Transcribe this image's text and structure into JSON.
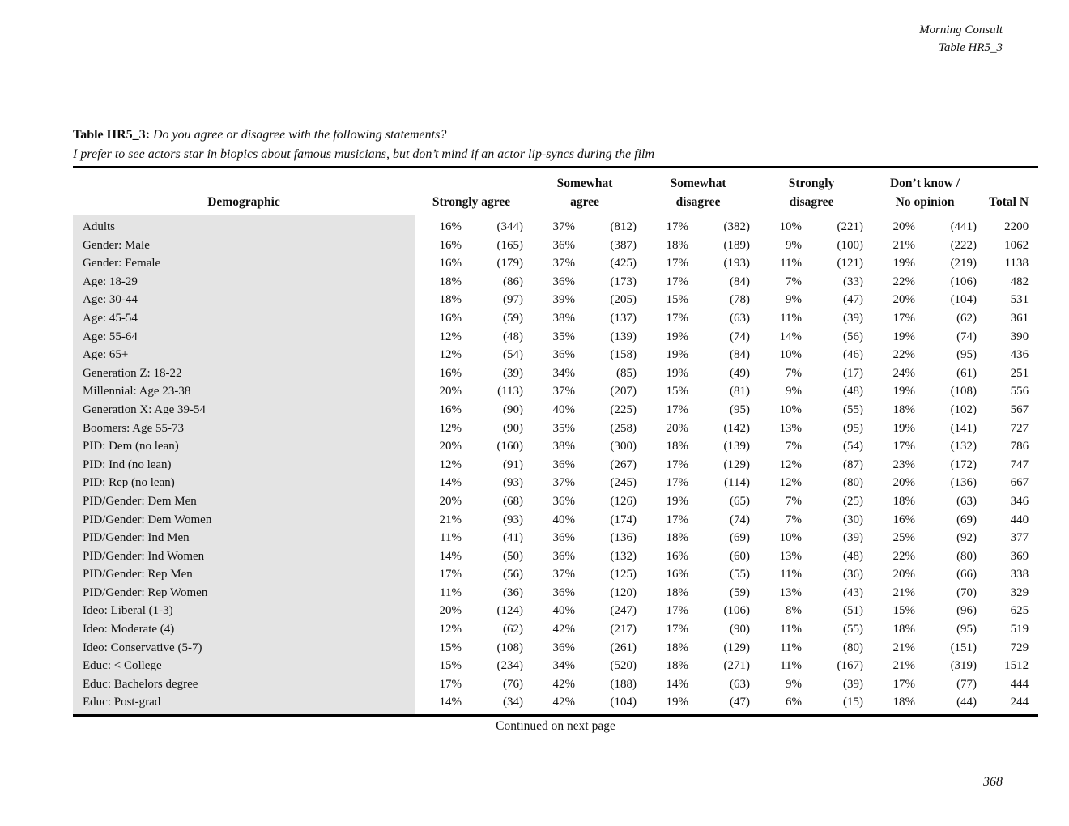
{
  "page_header": {
    "publisher": "Morning Consult",
    "table_ref": "Table HR5_3"
  },
  "title": {
    "prefix": "Table HR5_3:",
    "question": "Do you agree or disagree with the following statements?",
    "statement": "I prefer to see actors star in biopics about famous musicians, but don’t mind if an actor lip-syncs during the film"
  },
  "table": {
    "demographic_header": "Demographic",
    "response_headers": [
      "Strongly agree",
      "Somewhat\nagree",
      "Somewhat\ndisagree",
      "Strongly\ndisagree",
      "Don’t know /\nNo opinion"
    ],
    "total_header": "Total N",
    "rows": [
      {
        "demographic": "Adults",
        "values": [
          [
            "16%",
            "(344)"
          ],
          [
            "37%",
            "(812)"
          ],
          [
            "17%",
            "(382)"
          ],
          [
            "10%",
            "(221)"
          ],
          [
            "20%",
            "(441)"
          ]
        ],
        "total": "2200"
      },
      {
        "demographic": "Gender: Male",
        "values": [
          [
            "16%",
            "(165)"
          ],
          [
            "36%",
            "(387)"
          ],
          [
            "18%",
            "(189)"
          ],
          [
            "9%",
            "(100)"
          ],
          [
            "21%",
            "(222)"
          ]
        ],
        "total": "1062"
      },
      {
        "demographic": "Gender: Female",
        "values": [
          [
            "16%",
            "(179)"
          ],
          [
            "37%",
            "(425)"
          ],
          [
            "17%",
            "(193)"
          ],
          [
            "11%",
            "(121)"
          ],
          [
            "19%",
            "(219)"
          ]
        ],
        "total": "1138"
      },
      {
        "demographic": "Age: 18-29",
        "values": [
          [
            "18%",
            "(86)"
          ],
          [
            "36%",
            "(173)"
          ],
          [
            "17%",
            "(84)"
          ],
          [
            "7%",
            "(33)"
          ],
          [
            "22%",
            "(106)"
          ]
        ],
        "total": "482"
      },
      {
        "demographic": "Age: 30-44",
        "values": [
          [
            "18%",
            "(97)"
          ],
          [
            "39%",
            "(205)"
          ],
          [
            "15%",
            "(78)"
          ],
          [
            "9%",
            "(47)"
          ],
          [
            "20%",
            "(104)"
          ]
        ],
        "total": "531"
      },
      {
        "demographic": "Age: 45-54",
        "values": [
          [
            "16%",
            "(59)"
          ],
          [
            "38%",
            "(137)"
          ],
          [
            "17%",
            "(63)"
          ],
          [
            "11%",
            "(39)"
          ],
          [
            "17%",
            "(62)"
          ]
        ],
        "total": "361"
      },
      {
        "demographic": "Age: 55-64",
        "values": [
          [
            "12%",
            "(48)"
          ],
          [
            "35%",
            "(139)"
          ],
          [
            "19%",
            "(74)"
          ],
          [
            "14%",
            "(56)"
          ],
          [
            "19%",
            "(74)"
          ]
        ],
        "total": "390"
      },
      {
        "demographic": "Age: 65+",
        "values": [
          [
            "12%",
            "(54)"
          ],
          [
            "36%",
            "(158)"
          ],
          [
            "19%",
            "(84)"
          ],
          [
            "10%",
            "(46)"
          ],
          [
            "22%",
            "(95)"
          ]
        ],
        "total": "436"
      },
      {
        "demographic": "Generation Z: 18-22",
        "values": [
          [
            "16%",
            "(39)"
          ],
          [
            "34%",
            "(85)"
          ],
          [
            "19%",
            "(49)"
          ],
          [
            "7%",
            "(17)"
          ],
          [
            "24%",
            "(61)"
          ]
        ],
        "total": "251"
      },
      {
        "demographic": "Millennial: Age 23-38",
        "values": [
          [
            "20%",
            "(113)"
          ],
          [
            "37%",
            "(207)"
          ],
          [
            "15%",
            "(81)"
          ],
          [
            "9%",
            "(48)"
          ],
          [
            "19%",
            "(108)"
          ]
        ],
        "total": "556"
      },
      {
        "demographic": "Generation X: Age 39-54",
        "values": [
          [
            "16%",
            "(90)"
          ],
          [
            "40%",
            "(225)"
          ],
          [
            "17%",
            "(95)"
          ],
          [
            "10%",
            "(55)"
          ],
          [
            "18%",
            "(102)"
          ]
        ],
        "total": "567"
      },
      {
        "demographic": "Boomers: Age 55-73",
        "values": [
          [
            "12%",
            "(90)"
          ],
          [
            "35%",
            "(258)"
          ],
          [
            "20%",
            "(142)"
          ],
          [
            "13%",
            "(95)"
          ],
          [
            "19%",
            "(141)"
          ]
        ],
        "total": "727"
      },
      {
        "demographic": "PID: Dem (no lean)",
        "values": [
          [
            "20%",
            "(160)"
          ],
          [
            "38%",
            "(300)"
          ],
          [
            "18%",
            "(139)"
          ],
          [
            "7%",
            "(54)"
          ],
          [
            "17%",
            "(132)"
          ]
        ],
        "total": "786"
      },
      {
        "demographic": "PID: Ind (no lean)",
        "values": [
          [
            "12%",
            "(91)"
          ],
          [
            "36%",
            "(267)"
          ],
          [
            "17%",
            "(129)"
          ],
          [
            "12%",
            "(87)"
          ],
          [
            "23%",
            "(172)"
          ]
        ],
        "total": "747"
      },
      {
        "demographic": "PID: Rep (no lean)",
        "values": [
          [
            "14%",
            "(93)"
          ],
          [
            "37%",
            "(245)"
          ],
          [
            "17%",
            "(114)"
          ],
          [
            "12%",
            "(80)"
          ],
          [
            "20%",
            "(136)"
          ]
        ],
        "total": "667"
      },
      {
        "demographic": "PID/Gender: Dem Men",
        "values": [
          [
            "20%",
            "(68)"
          ],
          [
            "36%",
            "(126)"
          ],
          [
            "19%",
            "(65)"
          ],
          [
            "7%",
            "(25)"
          ],
          [
            "18%",
            "(63)"
          ]
        ],
        "total": "346"
      },
      {
        "demographic": "PID/Gender: Dem Women",
        "values": [
          [
            "21%",
            "(93)"
          ],
          [
            "40%",
            "(174)"
          ],
          [
            "17%",
            "(74)"
          ],
          [
            "7%",
            "(30)"
          ],
          [
            "16%",
            "(69)"
          ]
        ],
        "total": "440"
      },
      {
        "demographic": "PID/Gender: Ind Men",
        "values": [
          [
            "11%",
            "(41)"
          ],
          [
            "36%",
            "(136)"
          ],
          [
            "18%",
            "(69)"
          ],
          [
            "10%",
            "(39)"
          ],
          [
            "25%",
            "(92)"
          ]
        ],
        "total": "377"
      },
      {
        "demographic": "PID/Gender: Ind Women",
        "values": [
          [
            "14%",
            "(50)"
          ],
          [
            "36%",
            "(132)"
          ],
          [
            "16%",
            "(60)"
          ],
          [
            "13%",
            "(48)"
          ],
          [
            "22%",
            "(80)"
          ]
        ],
        "total": "369"
      },
      {
        "demographic": "PID/Gender: Rep Men",
        "values": [
          [
            "17%",
            "(56)"
          ],
          [
            "37%",
            "(125)"
          ],
          [
            "16%",
            "(55)"
          ],
          [
            "11%",
            "(36)"
          ],
          [
            "20%",
            "(66)"
          ]
        ],
        "total": "338"
      },
      {
        "demographic": "PID/Gender: Rep Women",
        "values": [
          [
            "11%",
            "(36)"
          ],
          [
            "36%",
            "(120)"
          ],
          [
            "18%",
            "(59)"
          ],
          [
            "13%",
            "(43)"
          ],
          [
            "21%",
            "(70)"
          ]
        ],
        "total": "329"
      },
      {
        "demographic": "Ideo: Liberal (1-3)",
        "values": [
          [
            "20%",
            "(124)"
          ],
          [
            "40%",
            "(247)"
          ],
          [
            "17%",
            "(106)"
          ],
          [
            "8%",
            "(51)"
          ],
          [
            "15%",
            "(96)"
          ]
        ],
        "total": "625"
      },
      {
        "demographic": "Ideo: Moderate (4)",
        "values": [
          [
            "12%",
            "(62)"
          ],
          [
            "42%",
            "(217)"
          ],
          [
            "17%",
            "(90)"
          ],
          [
            "11%",
            "(55)"
          ],
          [
            "18%",
            "(95)"
          ]
        ],
        "total": "519"
      },
      {
        "demographic": "Ideo: Conservative (5-7)",
        "values": [
          [
            "15%",
            "(108)"
          ],
          [
            "36%",
            "(261)"
          ],
          [
            "18%",
            "(129)"
          ],
          [
            "11%",
            "(80)"
          ],
          [
            "21%",
            "(151)"
          ]
        ],
        "total": "729"
      },
      {
        "demographic": "Educ: < College",
        "values": [
          [
            "15%",
            "(234)"
          ],
          [
            "34%",
            "(520)"
          ],
          [
            "18%",
            "(271)"
          ],
          [
            "11%",
            "(167)"
          ],
          [
            "21%",
            "(319)"
          ]
        ],
        "total": "1512"
      },
      {
        "demographic": "Educ: Bachelors degree",
        "values": [
          [
            "17%",
            "(76)"
          ],
          [
            "42%",
            "(188)"
          ],
          [
            "14%",
            "(63)"
          ],
          [
            "9%",
            "(39)"
          ],
          [
            "17%",
            "(77)"
          ]
        ],
        "total": "444"
      },
      {
        "demographic": "Educ: Post-grad",
        "values": [
          [
            "14%",
            "(34)"
          ],
          [
            "42%",
            "(104)"
          ],
          [
            "19%",
            "(47)"
          ],
          [
            "6%",
            "(15)"
          ],
          [
            "18%",
            "(44)"
          ]
        ],
        "total": "244"
      }
    ]
  },
  "footer": {
    "continued": "Continued on next page",
    "page_number": "368"
  }
}
